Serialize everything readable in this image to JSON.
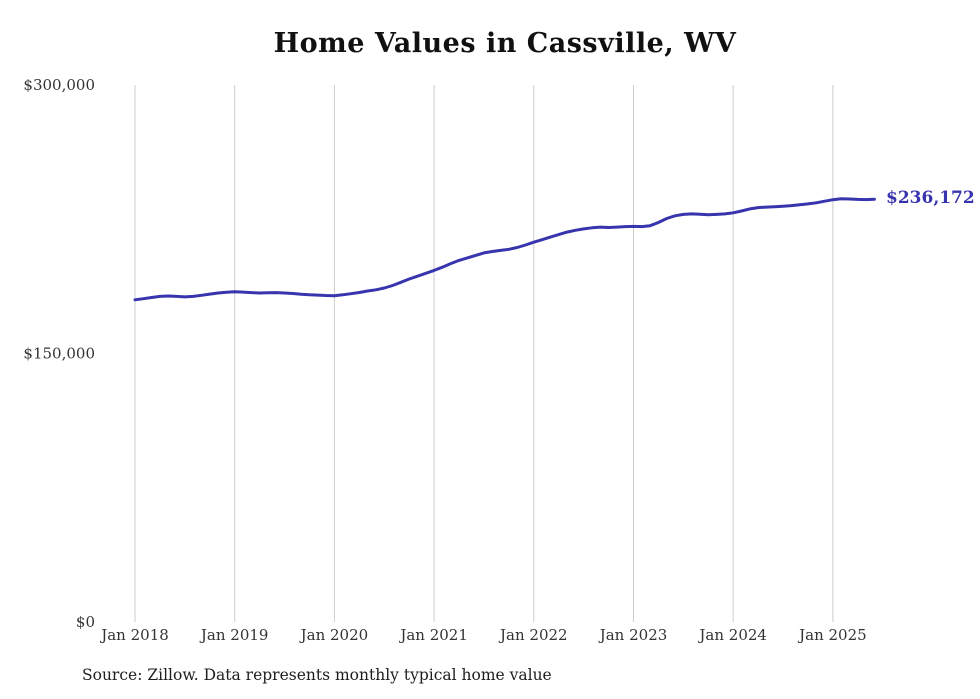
{
  "title": "Home Values in Cassville, WV",
  "source": "Source: Zillow. Data represents monthly typical home value",
  "colors": {
    "line": "#3734ae",
    "grid": "#cccccc",
    "axis_text": "#333333",
    "title_text": "#111111"
  },
  "chart_data": {
    "type": "line",
    "title": "Home Values in Cassville, WV",
    "xlabel": "",
    "ylabel": "",
    "ylim": [
      0,
      300000
    ],
    "grid": "vertical",
    "legend": "none",
    "final_value": 236172,
    "final_value_label": "$236,172",
    "y_ticks": [
      {
        "label": "$0",
        "value": 0
      },
      {
        "label": "$150,000",
        "value": 150000
      },
      {
        "label": "$300,000",
        "value": 300000
      }
    ],
    "x_tick_labels": [
      "Jan 2018",
      "Jan 2019",
      "Jan 2020",
      "Jan 2021",
      "Jan 2022",
      "Jan 2023",
      "Jan 2024",
      "Jan 2025"
    ],
    "x": [
      "2018-01",
      "2018-02",
      "2018-03",
      "2018-04",
      "2018-05",
      "2018-06",
      "2018-07",
      "2018-08",
      "2018-09",
      "2018-10",
      "2018-11",
      "2018-12",
      "2019-01",
      "2019-02",
      "2019-03",
      "2019-04",
      "2019-05",
      "2019-06",
      "2019-07",
      "2019-08",
      "2019-09",
      "2019-10",
      "2019-11",
      "2019-12",
      "2020-01",
      "2020-02",
      "2020-03",
      "2020-04",
      "2020-05",
      "2020-06",
      "2020-07",
      "2020-08",
      "2020-09",
      "2020-10",
      "2020-11",
      "2020-12",
      "2021-01",
      "2021-02",
      "2021-03",
      "2021-04",
      "2021-05",
      "2021-06",
      "2021-07",
      "2021-08",
      "2021-09",
      "2021-10",
      "2021-11",
      "2021-12",
      "2022-01",
      "2022-02",
      "2022-03",
      "2022-04",
      "2022-05",
      "2022-06",
      "2022-07",
      "2022-08",
      "2022-09",
      "2022-10",
      "2022-11",
      "2022-12",
      "2023-01",
      "2023-02",
      "2023-03",
      "2023-04",
      "2023-05",
      "2023-06",
      "2023-07",
      "2023-08",
      "2023-09",
      "2023-10",
      "2023-11",
      "2023-12",
      "2024-01",
      "2024-02",
      "2024-03",
      "2024-04",
      "2024-05",
      "2024-06",
      "2024-07",
      "2024-08",
      "2024-09",
      "2024-10",
      "2024-11",
      "2024-12",
      "2025-01",
      "2025-02",
      "2025-03",
      "2025-04",
      "2025-05",
      "2025-06"
    ],
    "values": [
      180000,
      180600,
      181300,
      181900,
      182100,
      181900,
      181600,
      181900,
      182500,
      183200,
      183800,
      184200,
      184500,
      184300,
      184000,
      183800,
      183900,
      184000,
      183800,
      183500,
      183100,
      182800,
      182600,
      182400,
      182300,
      182800,
      183400,
      184100,
      184900,
      185600,
      186600,
      188000,
      189800,
      191600,
      193200,
      194800,
      196400,
      198200,
      200200,
      202000,
      203400,
      204800,
      206200,
      207000,
      207600,
      208200,
      209200,
      210600,
      212200,
      213600,
      215000,
      216400,
      217800,
      218800,
      219600,
      220200,
      220600,
      220400,
      220600,
      220900,
      221000,
      220900,
      221400,
      223200,
      225400,
      226900,
      227700,
      228000,
      227800,
      227500,
      227700,
      228000,
      228600,
      229600,
      230800,
      231500,
      231800,
      232000,
      232300,
      232600,
      233100,
      233600,
      234200,
      235100,
      235900,
      236400,
      236300,
      236100,
      236000,
      236172
    ]
  }
}
